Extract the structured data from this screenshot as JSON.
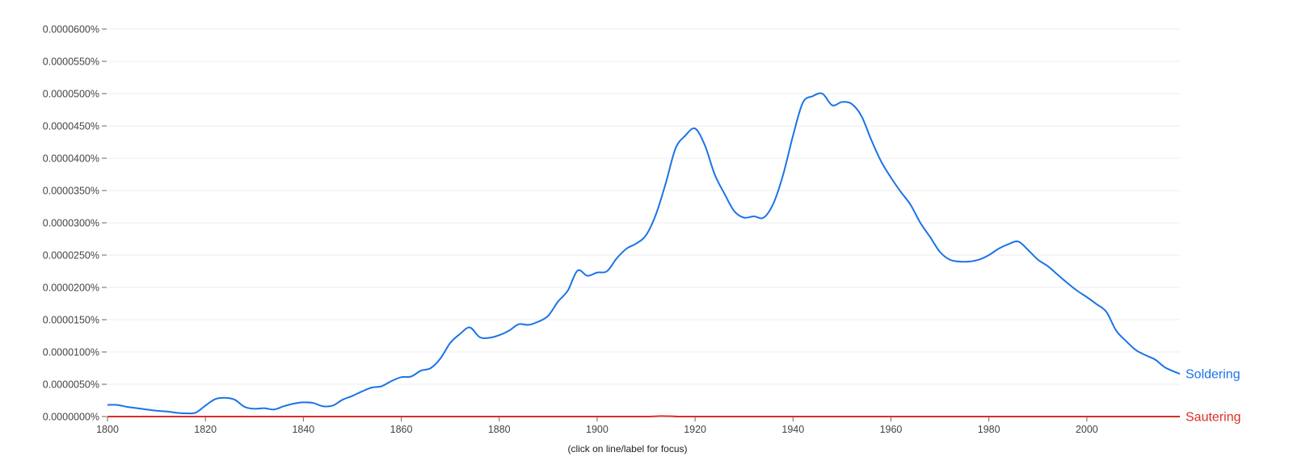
{
  "chart_data": {
    "type": "line",
    "title": "",
    "xlabel": "",
    "ylabel": "",
    "caption": "(click on line/label for focus)",
    "xlim": [
      1800,
      2019
    ],
    "ylim": [
      0,
      6e-05
    ],
    "y_unit": "%",
    "grid": true,
    "y_ticks": [
      0,
      5e-06,
      1e-05,
      1.5e-05,
      2e-05,
      2.5e-05,
      3e-05,
      3.5e-05,
      4e-05,
      4.5e-05,
      5e-05,
      5.5e-05,
      6e-05
    ],
    "y_tick_labels": [
      "0.0000000%",
      "0.0000050%",
      "0.0000100%",
      "0.0000150%",
      "0.0000200%",
      "0.0000250%",
      "0.0000300%",
      "0.0000350%",
      "0.0000400%",
      "0.0000450%",
      "0.0000500%",
      "0.0000550%",
      "0.0000600%"
    ],
    "x_ticks": [
      1800,
      1820,
      1840,
      1860,
      1880,
      1900,
      1920,
      1940,
      1960,
      1980,
      2000
    ],
    "x_tick_labels": [
      "1800",
      "1820",
      "1840",
      "1860",
      "1880",
      "1900",
      "1920",
      "1940",
      "1960",
      "1980",
      "2000"
    ],
    "series": [
      {
        "name": "Soldering",
        "color": "#1a73e8",
        "points": [
          [
            1800,
            1.8e-06
          ],
          [
            1802,
            1.8e-06
          ],
          [
            1804,
            1.5e-06
          ],
          [
            1806,
            1.3e-06
          ],
          [
            1808,
            1.1e-06
          ],
          [
            1810,
            9e-07
          ],
          [
            1812,
            8e-07
          ],
          [
            1814,
            6e-07
          ],
          [
            1816,
            5e-07
          ],
          [
            1818,
            6e-07
          ],
          [
            1820,
            1.7e-06
          ],
          [
            1822,
            2.7e-06
          ],
          [
            1824,
            2.9e-06
          ],
          [
            1826,
            2.6e-06
          ],
          [
            1828,
            1.5e-06
          ],
          [
            1830,
            1.2e-06
          ],
          [
            1832,
            1.3e-06
          ],
          [
            1834,
            1.1e-06
          ],
          [
            1836,
            1.6e-06
          ],
          [
            1838,
            2e-06
          ],
          [
            1840,
            2.2e-06
          ],
          [
            1842,
            2.1e-06
          ],
          [
            1844,
            1.6e-06
          ],
          [
            1846,
            1.7e-06
          ],
          [
            1848,
            2.6e-06
          ],
          [
            1850,
            3.2e-06
          ],
          [
            1852,
            3.9e-06
          ],
          [
            1854,
            4.5e-06
          ],
          [
            1856,
            4.7e-06
          ],
          [
            1858,
            5.5e-06
          ],
          [
            1860,
            6.1e-06
          ],
          [
            1862,
            6.2e-06
          ],
          [
            1864,
            7.1e-06
          ],
          [
            1866,
            7.5e-06
          ],
          [
            1868,
            9e-06
          ],
          [
            1870,
            1.14e-05
          ],
          [
            1872,
            1.28e-05
          ],
          [
            1874,
            1.38e-05
          ],
          [
            1876,
            1.23e-05
          ],
          [
            1878,
            1.22e-05
          ],
          [
            1880,
            1.26e-05
          ],
          [
            1882,
            1.33e-05
          ],
          [
            1884,
            1.43e-05
          ],
          [
            1886,
            1.42e-05
          ],
          [
            1888,
            1.47e-05
          ],
          [
            1890,
            1.56e-05
          ],
          [
            1892,
            1.78e-05
          ],
          [
            1894,
            1.95e-05
          ],
          [
            1896,
            2.26e-05
          ],
          [
            1898,
            2.18e-05
          ],
          [
            1900,
            2.23e-05
          ],
          [
            1902,
            2.25e-05
          ],
          [
            1904,
            2.45e-05
          ],
          [
            1906,
            2.6e-05
          ],
          [
            1908,
            2.68e-05
          ],
          [
            1910,
            2.81e-05
          ],
          [
            1912,
            3.13e-05
          ],
          [
            1914,
            3.61e-05
          ],
          [
            1916,
            4.15e-05
          ],
          [
            1918,
            4.35e-05
          ],
          [
            1920,
            4.46e-05
          ],
          [
            1922,
            4.2e-05
          ],
          [
            1924,
            3.75e-05
          ],
          [
            1926,
            3.45e-05
          ],
          [
            1928,
            3.18e-05
          ],
          [
            1930,
            3.08e-05
          ],
          [
            1932,
            3.1e-05
          ],
          [
            1934,
            3.08e-05
          ],
          [
            1936,
            3.3e-05
          ],
          [
            1938,
            3.75e-05
          ],
          [
            1940,
            4.35e-05
          ],
          [
            1942,
            4.86e-05
          ],
          [
            1944,
            4.96e-05
          ],
          [
            1946,
            5e-05
          ],
          [
            1948,
            4.82e-05
          ],
          [
            1950,
            4.87e-05
          ],
          [
            1952,
            4.84e-05
          ],
          [
            1954,
            4.65e-05
          ],
          [
            1956,
            4.28e-05
          ],
          [
            1958,
            3.95e-05
          ],
          [
            1960,
            3.7e-05
          ],
          [
            1962,
            3.48e-05
          ],
          [
            1964,
            3.28e-05
          ],
          [
            1966,
            3e-05
          ],
          [
            1968,
            2.78e-05
          ],
          [
            1970,
            2.55e-05
          ],
          [
            1972,
            2.43e-05
          ],
          [
            1974,
            2.4e-05
          ],
          [
            1976,
            2.4e-05
          ],
          [
            1978,
            2.43e-05
          ],
          [
            1980,
            2.5e-05
          ],
          [
            1982,
            2.6e-05
          ],
          [
            1984,
            2.67e-05
          ],
          [
            1986,
            2.71e-05
          ],
          [
            1988,
            2.58e-05
          ],
          [
            1990,
            2.43e-05
          ],
          [
            1992,
            2.33e-05
          ],
          [
            1994,
            2.2e-05
          ],
          [
            1996,
            2.07e-05
          ],
          [
            1998,
            1.95e-05
          ],
          [
            2000,
            1.85e-05
          ],
          [
            2002,
            1.74e-05
          ],
          [
            2004,
            1.62e-05
          ],
          [
            2006,
            1.33e-05
          ],
          [
            2008,
            1.17e-05
          ],
          [
            2010,
            1.03e-05
          ],
          [
            2012,
            9.5e-06
          ],
          [
            2014,
            8.8e-06
          ],
          [
            2016,
            7.6e-06
          ],
          [
            2019,
            6.6e-06
          ]
        ]
      },
      {
        "name": "Sautering",
        "color": "#d93025",
        "points": [
          [
            1800,
            0
          ],
          [
            1820,
            0
          ],
          [
            1840,
            0
          ],
          [
            1860,
            0
          ],
          [
            1880,
            0
          ],
          [
            1900,
            0
          ],
          [
            1910,
            0
          ],
          [
            1913,
            8e-08
          ],
          [
            1916,
            3e-08
          ],
          [
            1918,
            0
          ],
          [
            1940,
            0
          ],
          [
            1960,
            0
          ],
          [
            1980,
            0
          ],
          [
            2000,
            0
          ],
          [
            2019,
            0
          ]
        ]
      }
    ]
  }
}
